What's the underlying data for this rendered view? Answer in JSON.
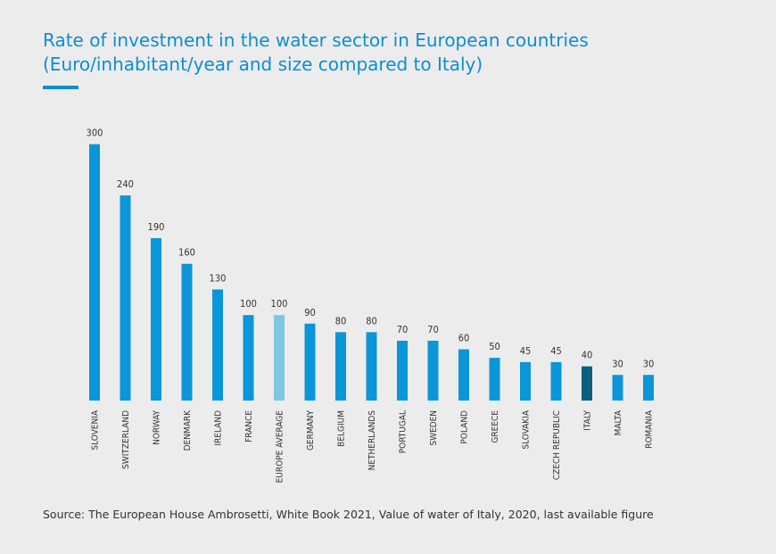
{
  "title": {
    "line1": "Rate of investment in the water sector in European countries",
    "line2": "(Euro/inhabitant/year and size compared to Italy)"
  },
  "source": "Source: The European House Ambrosetti, White Book 2021, Value of water of Italy, 2020, last available figure",
  "colors": {
    "background": "#ececec",
    "title": "#0a8fd1",
    "bar_default": "#0a96d8",
    "bar_average": "#7fc6e2",
    "bar_italy": "#0e5f80",
    "text": "#333333"
  },
  "chart_data": {
    "type": "bar",
    "title": "Rate of investment in the water sector in European countries (Euro/inhabitant/year and size compared to Italy)",
    "xlabel": "",
    "ylabel": "",
    "categories": [
      "SLOVENIA",
      "SWITZERLAND",
      "NORWAY",
      "DENMARK",
      "IRELAND",
      "FRANCE",
      "EUROPE AVERAGE",
      "GERMANY",
      "BELGIUM",
      "NETHERLANDS",
      "PORTUGAL",
      "SWEDEN",
      "POLAND",
      "GREECE",
      "SLOVAKIA",
      "CZECH REPUBLIC",
      "ITALY",
      "MALTA",
      "ROMANIA"
    ],
    "values": [
      300,
      240,
      190,
      160,
      130,
      100,
      100,
      90,
      80,
      80,
      70,
      70,
      60,
      50,
      45,
      45,
      40,
      30,
      30
    ],
    "data_labels": [
      "300",
      "240",
      "190",
      "160",
      "130",
      "100",
      "100",
      "90",
      "80",
      "80",
      "70",
      "70",
      "60",
      "50",
      "45",
      "45",
      "40",
      "30",
      "30"
    ],
    "highlight": {
      "EUROPE AVERAGE": "bar_average",
      "ITALY": "bar_italy"
    },
    "grid": false,
    "legend": "none",
    "y_axis_visible": false
  }
}
